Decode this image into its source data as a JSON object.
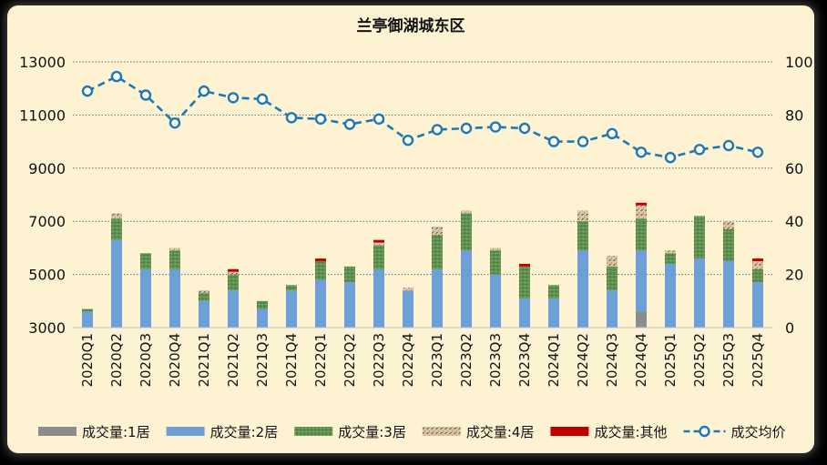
{
  "chart_data": {
    "type": "bar",
    "title": "兰亭御湖城东区",
    "categories": [
      "2020Q1",
      "2020Q2",
      "2020Q3",
      "2020Q4",
      "2021Q1",
      "2021Q2",
      "2021Q3",
      "2021Q4",
      "2022Q1",
      "2022Q2",
      "2022Q3",
      "2022Q4",
      "2023Q1",
      "2023Q2",
      "2023Q3",
      "2023Q4",
      "2024Q1",
      "2024Q2",
      "2024Q3",
      "2024Q4",
      "2025Q1",
      "2025Q2",
      "2025Q3",
      "2025Q4"
    ],
    "left_axis": {
      "min": 3000,
      "max": 13000,
      "ticks": [
        3000,
        5000,
        7000,
        9000,
        11000,
        13000
      ]
    },
    "right_axis": {
      "min": 0,
      "max": 100,
      "ticks": [
        0,
        20,
        40,
        60,
        80,
        100
      ]
    },
    "grid": true,
    "legend_position": "bottom",
    "series": [
      {
        "name": "成交量:1居",
        "kind": "bar",
        "axis": "right",
        "color": "#8c8c8c",
        "values": [
          0,
          0,
          0,
          0,
          0,
          0,
          0,
          0,
          0,
          0,
          0,
          0,
          0,
          0,
          0,
          0,
          0,
          0,
          0,
          6,
          0,
          0,
          0,
          0
        ]
      },
      {
        "name": "成交量:2居",
        "kind": "bar",
        "axis": "right",
        "color": "#6d9fd6",
        "values": [
          6,
          33,
          22,
          22,
          10,
          14,
          7,
          14,
          18,
          17,
          22,
          14,
          22,
          29,
          20,
          11,
          11,
          29,
          14,
          23,
          24,
          26,
          25,
          17
        ]
      },
      {
        "name": "成交量:3居",
        "kind": "bar",
        "axis": "right",
        "color": "#5e8f4e",
        "values": [
          1,
          8,
          6,
          7,
          3,
          6,
          3,
          2,
          7,
          6,
          9,
          0,
          13,
          14,
          9,
          12,
          5,
          11,
          9,
          12,
          4,
          16,
          12,
          5
        ]
      },
      {
        "name": "成交量:4居",
        "kind": "bar",
        "axis": "right",
        "color": "#d8c4a6",
        "values": [
          0,
          2,
          0,
          1,
          1,
          1,
          0,
          0,
          0,
          0,
          1,
          1,
          3,
          1,
          1,
          0,
          0,
          4,
          4,
          5,
          1,
          0,
          3,
          3
        ]
      },
      {
        "name": "成交量:其他",
        "kind": "bar",
        "axis": "right",
        "color": "#c00000",
        "values": [
          0,
          0,
          0,
          0,
          0,
          1,
          0,
          0,
          1,
          0,
          1,
          0,
          0,
          0,
          0,
          1,
          0,
          0,
          0,
          1,
          0,
          0,
          0,
          1
        ]
      },
      {
        "name": "成交均价",
        "kind": "line",
        "axis": "left",
        "color": "#1f77b4",
        "values": [
          11900,
          12450,
          11750,
          10700,
          11900,
          11650,
          11600,
          10900,
          10850,
          10650,
          10850,
          10050,
          10450,
          10500,
          10550,
          10500,
          10000,
          10000,
          10300,
          9600,
          9400,
          9700,
          9850,
          9600
        ]
      }
    ]
  }
}
